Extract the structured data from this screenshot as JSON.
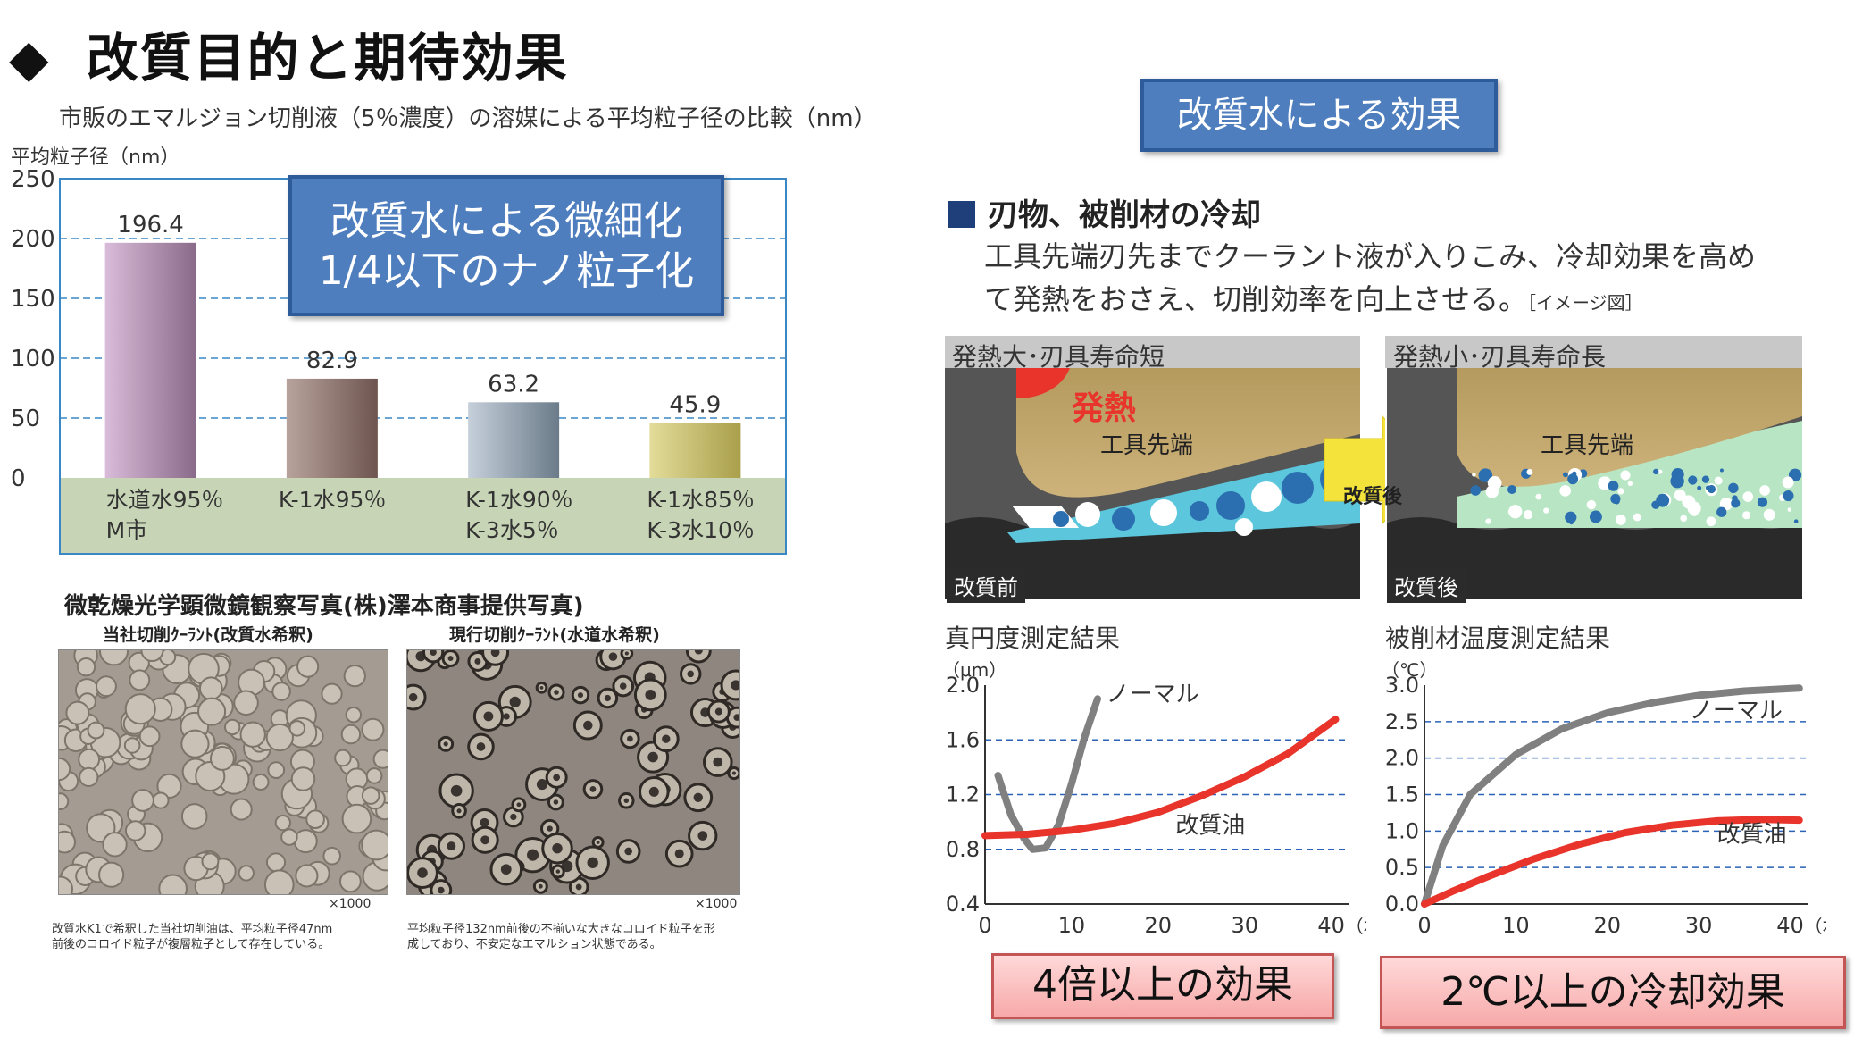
{
  "page": {
    "bullet": "◆",
    "title": "改質目的と期待効果"
  },
  "bar_section": {
    "caption": "市販のエマルジョン切削液（5％濃度）の溶媒による平均粒子径の比較（nm）",
    "ylabel": "平均粒子径（nm）",
    "callout_line1": "改質水による微細化",
    "callout_line2": "1/4以下のナノ粒子化"
  },
  "micro_section": {
    "title": "微乾燥光学顕微鏡観察写真(株)澤本商事提供写真)",
    "left_label": "当社切削ｸｰﾗﾝﾄ(改質水希釈)",
    "right_label": "現行切削ｸｰﾗﾝﾄ(水道水希釈)",
    "left_mag": "×1000",
    "right_mag": "×1000",
    "left_note_1": "改質水K1で希釈した当社切削油は、平均粒子径47nm",
    "left_note_2": "前後のコロイド粒子が複層粒子として存在している。",
    "right_note_1": "平均粒子径132nm前後の不揃いな大きなコロイド粒子を形",
    "right_note_2": "成しており、不安定なエマルション状態である。"
  },
  "effects": {
    "title_box": "改質水による効果",
    "heading": "刃物、被削材の冷却",
    "desc_line1": "工具先端刃先までクーラント液が入りこみ、冷却効果を高め",
    "desc_line2": "て発熱をおさえ、切削効率を向上させる。",
    "desc_note": "［イメージ図］",
    "panel_left_title": "発熱大･刃具寿命短",
    "panel_right_title": "発熱小･刃具寿命長",
    "heat_label": "発熱",
    "tool_tip_left": "工具先端",
    "tool_tip_right": "工具先端",
    "arrow_label": "改質後",
    "tag_before": "改質前",
    "tag_after": "改質後",
    "result_left": "4倍以上の効果",
    "result_right": "2℃以上の冷却効果"
  },
  "colors": {
    "callout_blue": "#4f7ebf",
    "normal_gray": "#808080",
    "improved_red": "#e8342a",
    "result_pink": "#f7a9a9",
    "chart_border": "#3a87c6"
  },
  "chart_data": [
    {
      "type": "bar",
      "categories": [
        [
          "水道水95％",
          "M市"
        ],
        [
          "K-1水95％",
          ""
        ],
        [
          "K-1水90％",
          "K-3水5％"
        ],
        [
          "K-1水85％",
          "K-3水10％"
        ]
      ],
      "values": [
        196.4,
        82.9,
        63.2,
        45.9
      ],
      "value_labels": [
        "196.4",
        "82.9",
        "63.2",
        "45.9"
      ],
      "bar_colors": [
        [
          "#d9bcd9",
          "#8a6a89"
        ],
        [
          "#b8a39c",
          "#6e5550"
        ],
        [
          "#c6d0db",
          "#6b7b89"
        ],
        [
          "#e3dc9a",
          "#a99f4b"
        ]
      ],
      "ylabel": "平均粒子径（nm）",
      "ylim": [
        0,
        250
      ],
      "yticks": [
        0,
        50,
        100,
        150,
        200,
        250
      ],
      "grid": true
    },
    {
      "type": "line",
      "title": "真円度測定結果",
      "yunit": "（μm）",
      "xunit": "（本）",
      "xlim": [
        0,
        42
      ],
      "ylim": [
        0.4,
        2.0
      ],
      "xticks": [
        0,
        10,
        20,
        30,
        40
      ],
      "ytick_labels": [
        "2.0",
        "1.6",
        "1.2",
        "0.8",
        "0.4"
      ],
      "ytick_values": [
        2.0,
        1.6,
        1.2,
        0.8,
        0.4
      ],
      "series": [
        {
          "name": "ノーマル",
          "color": "#808080",
          "x": [
            1.5,
            3,
            4.5,
            5.5,
            7,
            8.5,
            10,
            11.5,
            13
          ],
          "y": [
            1.34,
            1.05,
            0.88,
            0.8,
            0.81,
            0.98,
            1.28,
            1.62,
            1.9
          ]
        },
        {
          "name": "改質油",
          "color": "#e8342a",
          "x": [
            0,
            5,
            10,
            15,
            20,
            25,
            30,
            35,
            40.5
          ],
          "y": [
            0.9,
            0.91,
            0.94,
            0.99,
            1.07,
            1.19,
            1.33,
            1.5,
            1.75
          ]
        }
      ]
    },
    {
      "type": "line",
      "title": "被削材温度測定結果",
      "yunit": "（℃）",
      "xunit": "（本）",
      "xlim": [
        0,
        42
      ],
      "ylim": [
        0,
        3.0
      ],
      "xticks": [
        0,
        10,
        20,
        30,
        40
      ],
      "ytick_labels": [
        "3.0",
        "2.5",
        "2.0",
        "1.5",
        "1.0",
        "0.5",
        "0.0"
      ],
      "ytick_values": [
        3.0,
        2.5,
        2.0,
        1.5,
        1.0,
        0.5,
        0.0
      ],
      "series": [
        {
          "name": "ノーマル",
          "color": "#808080",
          "x": [
            0,
            2,
            5,
            10,
            15,
            20,
            25,
            30,
            35,
            41
          ],
          "y": [
            0,
            0.8,
            1.5,
            2.05,
            2.4,
            2.62,
            2.76,
            2.86,
            2.92,
            2.96
          ]
        },
        {
          "name": "改質油",
          "color": "#e8342a",
          "x": [
            0,
            3,
            7,
            12,
            17,
            22,
            27,
            32,
            37,
            41
          ],
          "y": [
            0,
            0.17,
            0.38,
            0.62,
            0.82,
            0.98,
            1.08,
            1.14,
            1.16,
            1.15
          ]
        }
      ]
    }
  ]
}
